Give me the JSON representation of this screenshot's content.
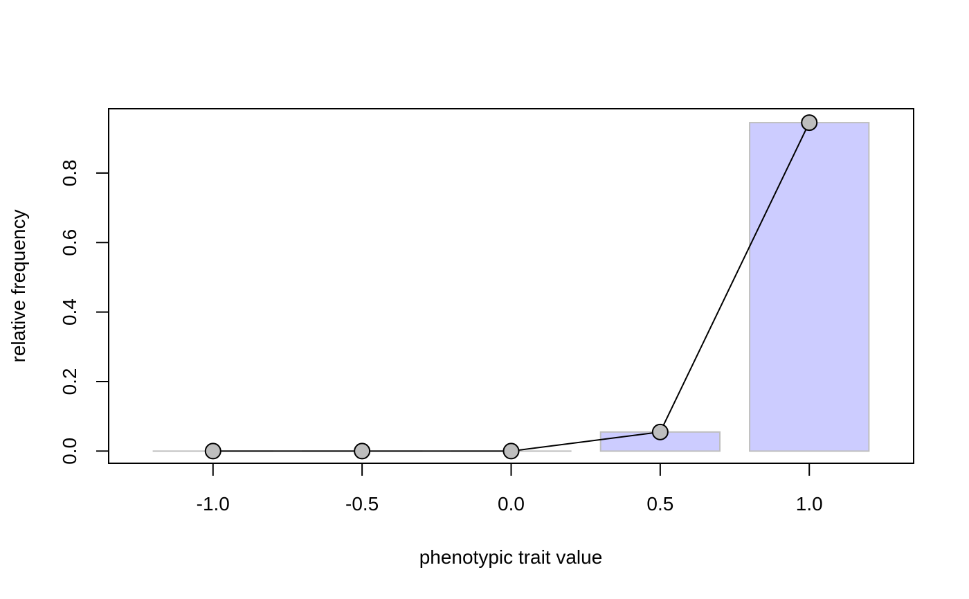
{
  "chart_data": {
    "type": "bar",
    "title": "",
    "xlabel": "phenotypic trait value",
    "ylabel": "relative frequency",
    "xlim": [
      -1.35,
      1.35
    ],
    "ylim": [
      -0.035,
      0.985
    ],
    "xticks": [
      -1.0,
      -0.5,
      0.0,
      0.5,
      1.0
    ],
    "xtick_labels": [
      "-1.0",
      "-0.5",
      "0.0",
      "0.5",
      "1.0"
    ],
    "yticks": [
      0.0,
      0.2,
      0.4,
      0.6,
      0.8
    ],
    "ytick_labels": [
      "0.0",
      "0.2",
      "0.4",
      "0.6",
      "0.8"
    ],
    "bar_width": 0.4,
    "x": [
      -1.0,
      -0.5,
      0.0,
      0.5,
      1.0
    ],
    "values": [
      0.0,
      0.0,
      0.0,
      0.055,
      0.945
    ],
    "grid": false,
    "legend": "none"
  },
  "colors": {
    "bar_fill": "#ccccff",
    "bar_stroke": "#bebebe",
    "point_fill": "#bebebe",
    "point_stroke": "#000000",
    "line": "#000000",
    "frame": "#000000"
  }
}
